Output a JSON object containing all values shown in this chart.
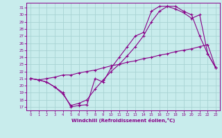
{
  "xlabel": "Windchill (Refroidissement éolien,°C)",
  "xlim_min": -0.5,
  "xlim_max": 23.5,
  "ylim_min": 16.5,
  "ylim_max": 31.7,
  "xticks": [
    0,
    1,
    2,
    3,
    4,
    5,
    6,
    7,
    8,
    9,
    10,
    11,
    12,
    13,
    14,
    15,
    16,
    17,
    18,
    19,
    20,
    21,
    22,
    23
  ],
  "yticks": [
    17,
    18,
    19,
    20,
    21,
    22,
    23,
    24,
    25,
    26,
    27,
    28,
    29,
    30,
    31
  ],
  "line_color": "#880088",
  "bg_color": "#c8ecec",
  "grid_color": "#a8d4d4",
  "line1_x": [
    0,
    1,
    2,
    3,
    4,
    5,
    6,
    7,
    8,
    9,
    10,
    11,
    12,
    13,
    14,
    15,
    16,
    17,
    18,
    19,
    20,
    21,
    22,
    23
  ],
  "line1_y": [
    21.0,
    20.8,
    21.0,
    21.2,
    21.5,
    21.5,
    21.8,
    22.0,
    22.2,
    22.5,
    22.8,
    23.0,
    23.3,
    23.5,
    23.8,
    24.0,
    24.3,
    24.5,
    24.8,
    25.0,
    25.2,
    25.5,
    25.8,
    22.5
  ],
  "line2_x": [
    0,
    1,
    2,
    3,
    4,
    5,
    6,
    7,
    8,
    9,
    10,
    11,
    12,
    13,
    14,
    15,
    16,
    17,
    18,
    19,
    20,
    21,
    22,
    23
  ],
  "line2_y": [
    21.0,
    20.8,
    20.5,
    19.8,
    18.8,
    17.2,
    17.5,
    18.0,
    19.5,
    20.8,
    22.0,
    23.0,
    24.2,
    25.5,
    27.0,
    29.0,
    30.5,
    31.2,
    31.2,
    30.5,
    30.0,
    27.0,
    24.5,
    22.5
  ],
  "line3_x": [
    0,
    1,
    2,
    3,
    4,
    5,
    6,
    7,
    8,
    9,
    10,
    11,
    12,
    13,
    14,
    15,
    16,
    17,
    18,
    19,
    20,
    21,
    22,
    23
  ],
  "line3_y": [
    21.0,
    20.8,
    20.5,
    19.8,
    19.0,
    17.0,
    17.2,
    17.3,
    21.0,
    20.5,
    22.5,
    24.0,
    25.5,
    27.0,
    27.5,
    30.5,
    31.2,
    31.2,
    30.8,
    30.3,
    29.5,
    30.0,
    24.5,
    22.5
  ]
}
